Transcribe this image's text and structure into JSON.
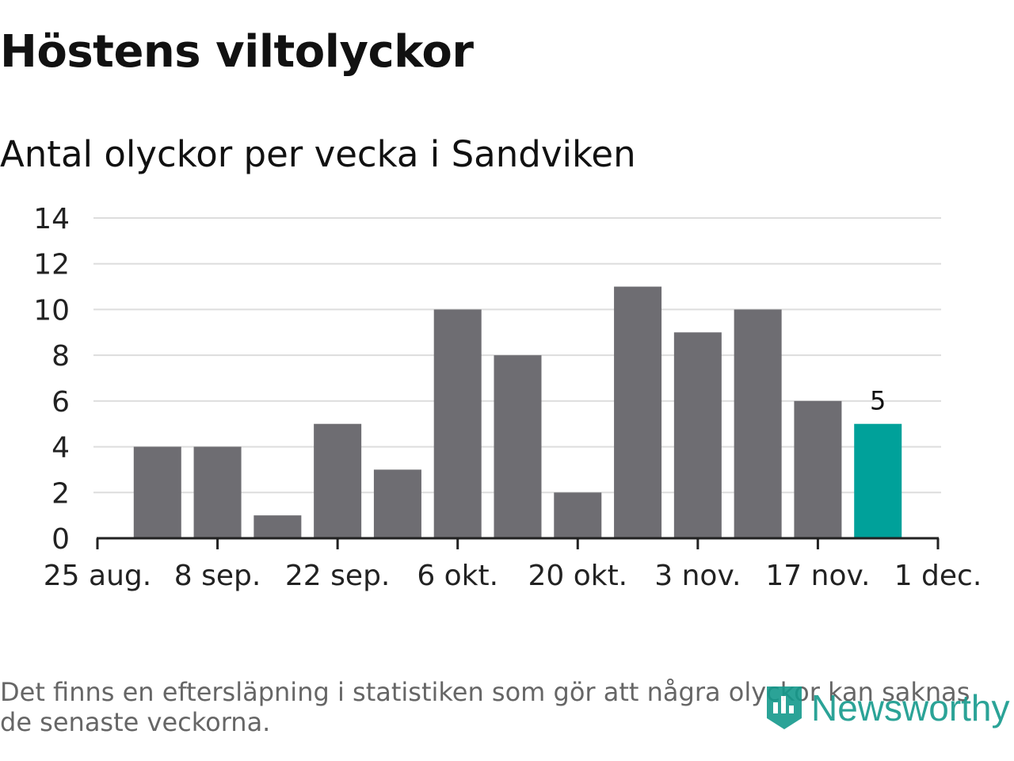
{
  "header": {
    "title": "Höstens viltolyckor",
    "subtitle": "Antal olyckor per vecka i Sandviken"
  },
  "footer": {
    "note": "Det finns en eftersläpning i statistiken som gör att några olyckor kan saknas de senaste veckorna.",
    "brand": "Newsworthy",
    "brand_icon": "newsworthy-logo-icon"
  },
  "colors": {
    "bar": "#6e6d72",
    "highlight": "#00a19a",
    "grid": "#dddddd",
    "axis": "#222222",
    "brand": "#159a8c"
  },
  "chart_data": {
    "type": "bar",
    "title": "Höstens viltolyckor",
    "subtitle": "Antal olyckor per vecka i Sandviken",
    "xlabel": "",
    "ylabel": "",
    "x_axis_ticks": [
      "25 aug.",
      "8 sep.",
      "22 sep.",
      "6 okt.",
      "20 okt.",
      "3 nov.",
      "17 nov.",
      "1 dec."
    ],
    "categories": [
      "2025-08-25",
      "2025-09-01",
      "2025-09-08",
      "2025-09-15",
      "2025-09-22",
      "2025-09-29",
      "2025-10-06",
      "2025-10-13",
      "2025-10-20",
      "2025-10-27",
      "2025-11-03",
      "2025-11-10",
      "2025-11-17"
    ],
    "values": [
      4,
      4,
      1,
      5,
      3,
      10,
      8,
      2,
      11,
      9,
      10,
      6,
      5
    ],
    "highlight_index": 12,
    "data_labels": [
      {
        "index": 12,
        "text": "5"
      }
    ],
    "ylim": [
      0,
      14
    ],
    "yticks": [
      0,
      2,
      4,
      6,
      8,
      10,
      12,
      14
    ],
    "grid": true,
    "legend": "none"
  }
}
